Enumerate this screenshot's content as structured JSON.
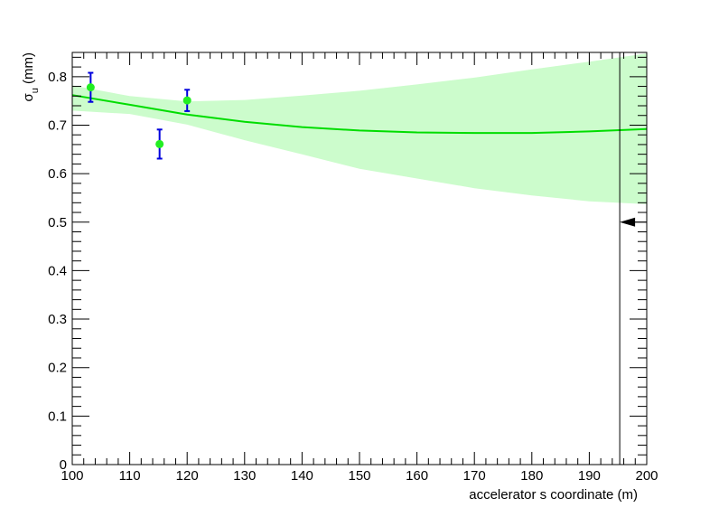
{
  "chart_data": {
    "type": "scatter",
    "xlabel": "accelerator s coordinate (m)",
    "ylabel_main": "σ",
    "ylabel_sub": "u",
    "ylabel_unit": " (mm)",
    "xlim": [
      100,
      200
    ],
    "ylim": [
      0,
      0.85
    ],
    "x_ticks": [
      100,
      110,
      120,
      130,
      140,
      150,
      160,
      170,
      180,
      190,
      200
    ],
    "y_ticks": [
      0,
      0.1,
      0.2,
      0.3,
      0.4,
      0.5,
      0.6,
      0.7,
      0.8
    ],
    "x_tick_labels": [
      "100",
      "110",
      "120",
      "130",
      "140",
      "150",
      "160",
      "170",
      "180",
      "190",
      "200"
    ],
    "y_tick_labels": [
      "0",
      "0.1",
      "0.2",
      "0.3",
      "0.4",
      "0.5",
      "0.6",
      "0.7",
      "0.8"
    ],
    "grid": false,
    "points": [
      {
        "x": 103.2,
        "y": 0.778,
        "err": 0.03
      },
      {
        "x": 115.2,
        "y": 0.661,
        "err": 0.03
      },
      {
        "x": 120.0,
        "y": 0.751,
        "err": 0.022
      }
    ],
    "fit_curve": {
      "x": [
        100,
        110,
        120,
        130,
        140,
        150,
        160,
        170,
        180,
        190,
        200
      ],
      "y": [
        0.762,
        0.742,
        0.722,
        0.707,
        0.696,
        0.689,
        0.685,
        0.684,
        0.684,
        0.687,
        0.692
      ]
    },
    "fit_band": {
      "x": [
        100,
        110,
        120,
        130,
        140,
        150,
        160,
        170,
        180,
        190,
        200
      ],
      "upper": [
        0.782,
        0.76,
        0.749,
        0.752,
        0.761,
        0.771,
        0.784,
        0.798,
        0.815,
        0.831,
        0.848
      ],
      "lower": [
        0.73,
        0.723,
        0.701,
        0.669,
        0.64,
        0.61,
        0.59,
        0.57,
        0.555,
        0.543,
        0.537
      ]
    },
    "marker_line_x": 195.3,
    "arrow": {
      "y": 0.5,
      "from_x": 200,
      "to_x": 195.3
    },
    "colors": {
      "band": "#ccfccc",
      "curve": "#00dd00",
      "points": "#22ee22",
      "error_bars": "#0000dd",
      "axes": "#000000"
    }
  }
}
